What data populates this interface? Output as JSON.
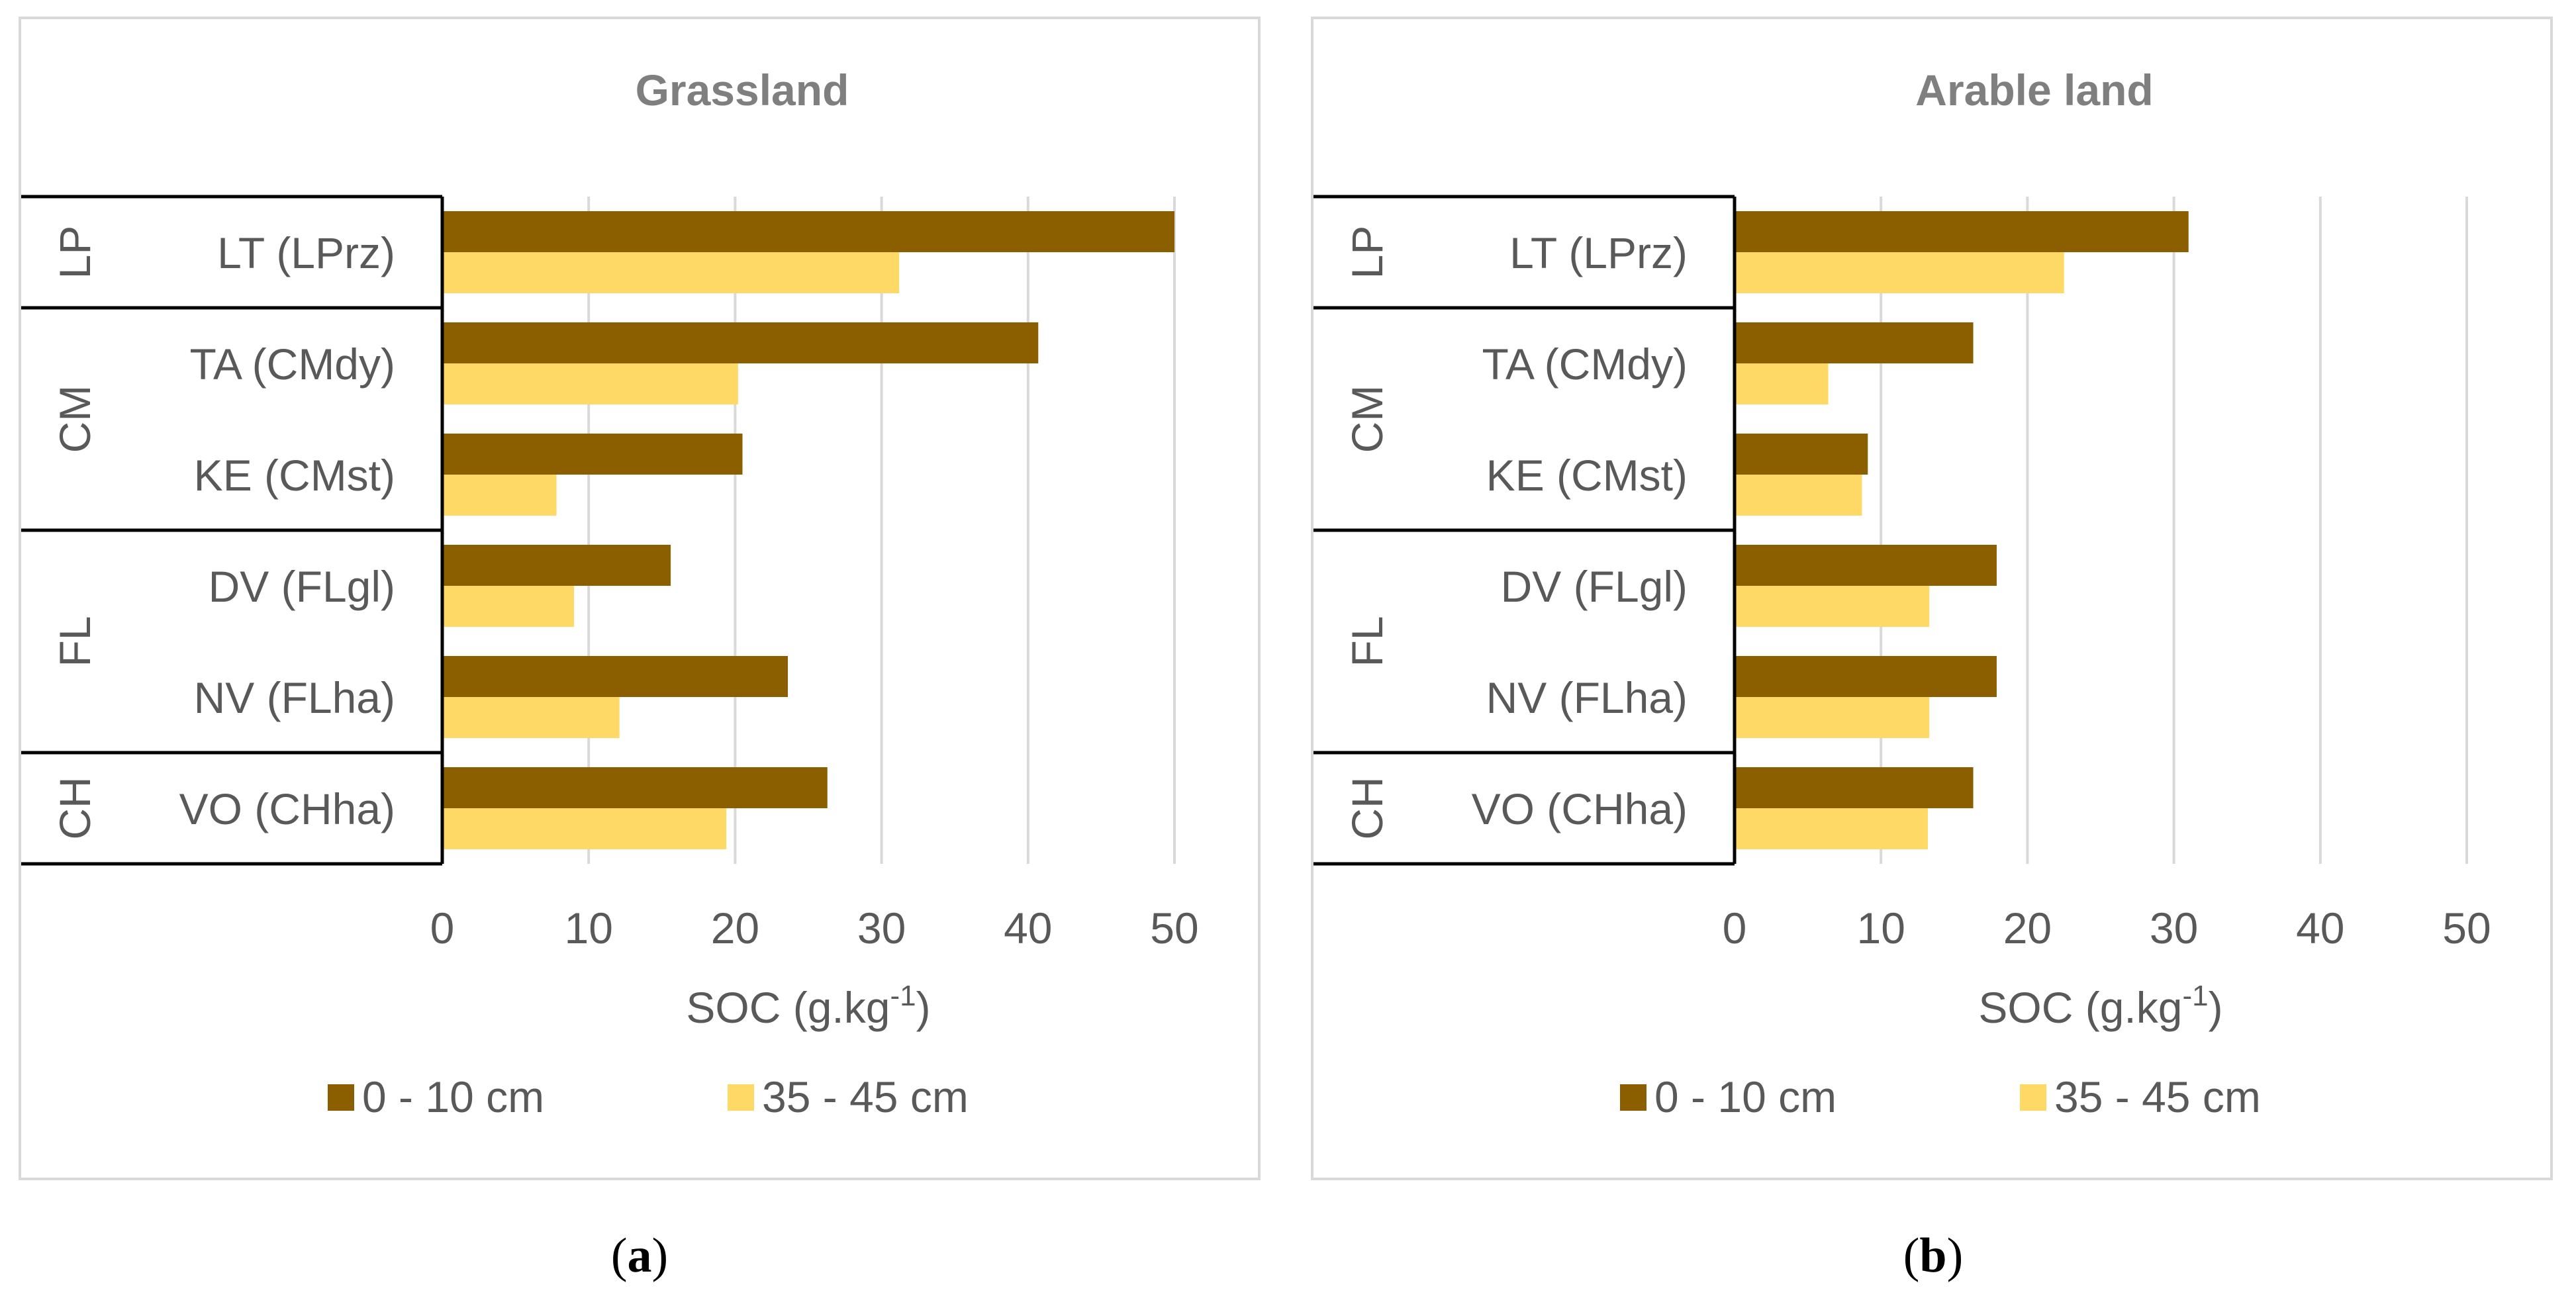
{
  "chart_data": [
    {
      "type": "bar",
      "orientation": "horizontal",
      "title": "Grassland",
      "caption_letter": "a",
      "xlabel_main": "SOC (g.kg",
      "xlabel_sup": "-1",
      "xlabel_close": ")",
      "xlim": [
        0,
        50
      ],
      "xticks": [
        "0",
        "10",
        "20",
        "30",
        "40",
        "50"
      ],
      "grid": true,
      "legend_position": "bottom",
      "groups": [
        {
          "label": "LP",
          "categories": [
            "LT (LPrz)"
          ]
        },
        {
          "label": "CM",
          "categories": [
            "TA (CMdy)",
            "KE (CMst)"
          ]
        },
        {
          "label": "FL",
          "categories": [
            "DV (FLgl)",
            "NV (FLha)"
          ]
        },
        {
          "label": "CH",
          "categories": [
            "VO (CHha)"
          ]
        }
      ],
      "categories": [
        "LT (LPrz)",
        "TA (CMdy)",
        "KE (CMst)",
        "DV (FLgl)",
        "NV (FLha)",
        "VO (CHha)"
      ],
      "series": [
        {
          "name": "0 - 10 cm",
          "color": "#8b5e00",
          "values": [
            50.0,
            40.7,
            20.5,
            15.6,
            23.6,
            26.3
          ]
        },
        {
          "name": "35 - 45 cm",
          "color": "#ffd966",
          "values": [
            31.2,
            20.2,
            7.8,
            9.0,
            12.1,
            19.4
          ]
        }
      ]
    },
    {
      "type": "bar",
      "orientation": "horizontal",
      "title": "Arable land",
      "caption_letter": "b",
      "xlabel_main": "SOC (g.kg",
      "xlabel_sup": "-1",
      "xlabel_close": ")",
      "xlim": [
        0,
        50
      ],
      "xticks": [
        "0",
        "10",
        "20",
        "30",
        "40",
        "50"
      ],
      "grid": true,
      "legend_position": "bottom",
      "groups": [
        {
          "label": "LP",
          "categories": [
            "LT (LPrz)"
          ]
        },
        {
          "label": "CM",
          "categories": [
            "TA (CMdy)",
            "KE (CMst)"
          ]
        },
        {
          "label": "FL",
          "categories": [
            "DV (FLgl)",
            "NV (FLha)"
          ]
        },
        {
          "label": "CH",
          "categories": [
            "VO (CHha)"
          ]
        }
      ],
      "categories": [
        "LT (LPrz)",
        "TA (CMdy)",
        "KE (CMst)",
        "DV (FLgl)",
        "NV (FLha)",
        "VO (CHha)"
      ],
      "series": [
        {
          "name": "0 - 10 cm",
          "color": "#8b5e00",
          "values": [
            31.0,
            16.3,
            9.1,
            17.9,
            17.9,
            16.3
          ]
        },
        {
          "name": "35 - 45 cm",
          "color": "#ffd966",
          "values": [
            22.5,
            6.4,
            8.7,
            13.3,
            13.3,
            13.2
          ]
        }
      ]
    }
  ]
}
